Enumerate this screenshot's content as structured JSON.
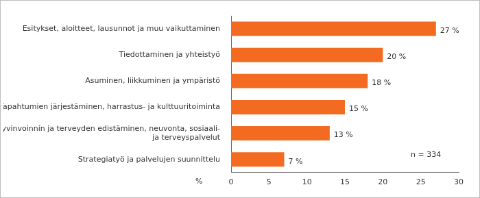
{
  "chart_data": {
    "type": "bar",
    "orientation": "horizontal",
    "categories": [
      "Esitykset, aloitteet, lausunnot ja muu vaikuttaminen",
      "Tiedottaminen ja yhteistyö",
      "Asuminen, liikkuminen ja ympäristö",
      "Tapahtumien järjestäminen, harrastus- ja kulttuuritoiminta",
      [
        "Hyvinvoinnin ja terveyden edistäminen, neuvonta, sosiaali-",
        "ja terveyspalvelut"
      ],
      "Strategiatyö ja palvelujen suunnittelu"
    ],
    "values": [
      27,
      20,
      18,
      15,
      13,
      7
    ],
    "value_labels": [
      "27 %",
      "20 %",
      "18 %",
      "15 %",
      "13 %",
      "7 %"
    ],
    "data_labels": true,
    "color": "#f26b21",
    "xlim": [
      0,
      30
    ],
    "xticks": [
      0,
      5,
      10,
      15,
      20,
      25,
      30
    ],
    "x_label": "%",
    "annotation": "n = 334",
    "grid": false
  }
}
